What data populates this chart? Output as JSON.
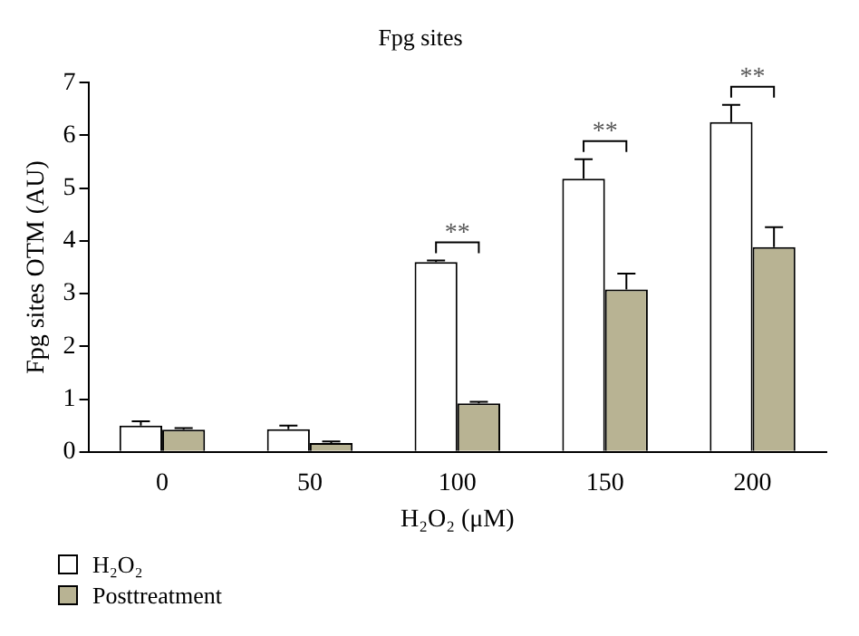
{
  "chart_data": {
    "type": "bar",
    "title": "Fpg sites",
    "xlabel": "H₂O₂ (μM)",
    "ylabel": "Fpg sites OTM (AU)",
    "categories": [
      "0",
      "50",
      "100",
      "150",
      "200"
    ],
    "series": [
      {
        "name": "H₂O₂",
        "color": "#ffffff",
        "values": [
          0.5,
          0.43,
          3.6,
          5.18,
          6.25
        ],
        "errors": [
          0.08,
          0.07,
          0.03,
          0.37,
          0.33
        ]
      },
      {
        "name": "Posttreatment",
        "color": "#b8b393",
        "values": [
          0.42,
          0.17,
          0.92,
          3.08,
          3.88
        ],
        "errors": [
          0.03,
          0.03,
          0.03,
          0.3,
          0.38
        ]
      }
    ],
    "ylim": [
      0,
      7
    ],
    "yticks": [
      0,
      1,
      2,
      3,
      4,
      5,
      6,
      7
    ],
    "grid": false,
    "legend": "bottom left",
    "annotations": [
      "**",
      "**",
      "**"
    ]
  }
}
